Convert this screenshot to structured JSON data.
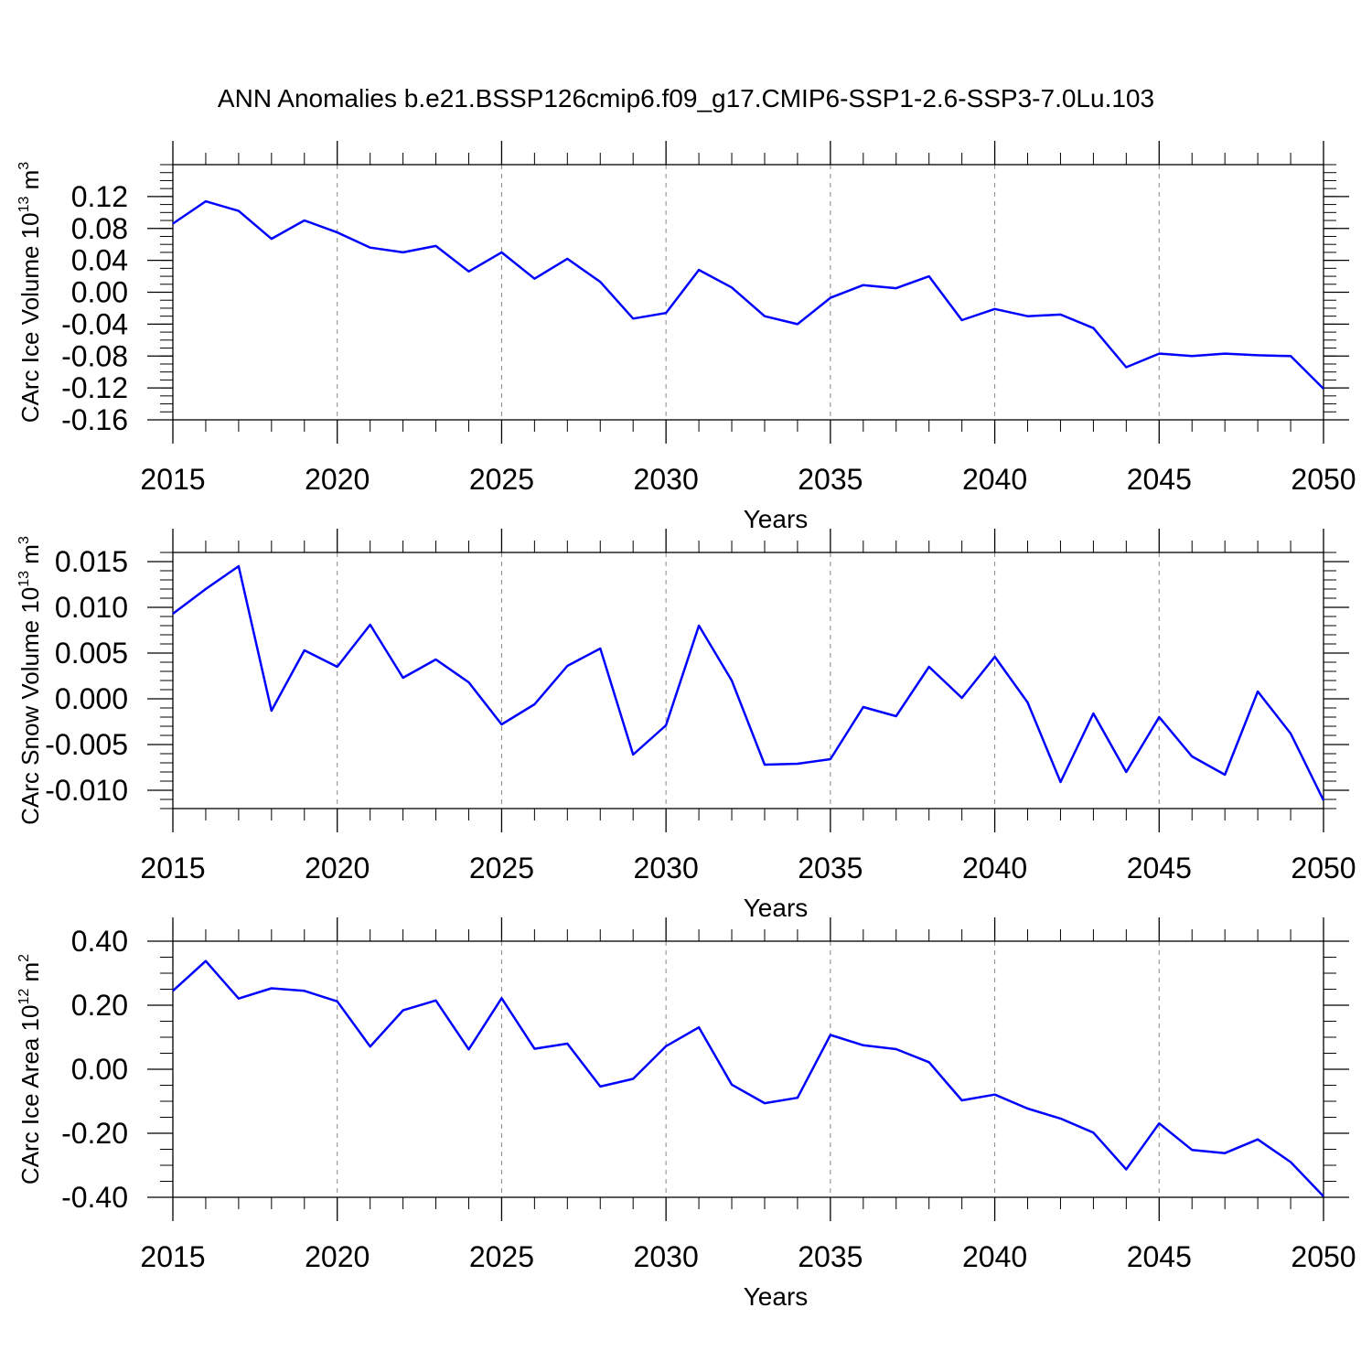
{
  "title": "ANN Anomalies b.e21.BSSP126cmip6.f09_g17.CMIP6-SSP1-2.6-SSP3-7.0Lu.103",
  "colors": {
    "line": "#0000ff",
    "axis": "#000000",
    "grid": "#888888"
  },
  "chart_data": [
    {
      "type": "line",
      "name": "ice-volume",
      "ylabel": "CArc Ice Volume 10",
      "ylabel_exp": "13",
      "ylabel_unit": " m",
      "ylabel_unit_exp": "3",
      "xlabel": "Years",
      "xlim": [
        2015,
        2050
      ],
      "ylim": [
        -0.16,
        0.16
      ],
      "yticks": [
        -0.16,
        -0.12,
        -0.08,
        -0.04,
        0.0,
        0.04,
        0.08,
        0.12
      ],
      "ytick_labels": [
        "-0.16",
        "-0.12",
        "-0.08",
        "-0.04",
        "0.00",
        "0.04",
        "0.08",
        "0.12"
      ],
      "yminor_step": 0.01,
      "x": [
        2015,
        2016,
        2017,
        2018,
        2019,
        2020,
        2021,
        2022,
        2023,
        2024,
        2025,
        2026,
        2027,
        2028,
        2029,
        2030,
        2031,
        2032,
        2033,
        2034,
        2035,
        2036,
        2037,
        2038,
        2039,
        2040,
        2041,
        2042,
        2043,
        2044,
        2045,
        2046,
        2047,
        2048,
        2049,
        2050
      ],
      "values": [
        0.086,
        0.114,
        0.102,
        0.067,
        0.09,
        0.075,
        0.056,
        0.05,
        0.058,
        0.026,
        0.05,
        0.017,
        0.042,
        0.013,
        -0.033,
        -0.026,
        0.028,
        0.006,
        -0.03,
        -0.04,
        -0.007,
        0.009,
        0.005,
        0.02,
        -0.035,
        -0.021,
        -0.03,
        -0.028,
        -0.045,
        -0.094,
        -0.077,
        -0.08,
        -0.077,
        -0.079,
        -0.08,
        -0.121
      ]
    },
    {
      "type": "line",
      "name": "snow-volume",
      "ylabel": "CArc Snow Volume 10",
      "ylabel_exp": "13",
      "ylabel_unit": " m",
      "ylabel_unit_exp": "3",
      "xlabel": "Years",
      "xlim": [
        2015,
        2050
      ],
      "ylim": [
        -0.012,
        0.016
      ],
      "yticks": [
        -0.01,
        -0.005,
        0.0,
        0.005,
        0.01,
        0.015
      ],
      "ytick_labels": [
        "-0.010",
        "-0.005",
        "0.000",
        "0.005",
        "0.010",
        "0.015"
      ],
      "yminor_step": 0.001,
      "x": [
        2015,
        2016,
        2017,
        2018,
        2019,
        2020,
        2021,
        2022,
        2023,
        2024,
        2025,
        2026,
        2027,
        2028,
        2029,
        2030,
        2031,
        2032,
        2033,
        2034,
        2035,
        2036,
        2037,
        2038,
        2039,
        2040,
        2041,
        2042,
        2043,
        2044,
        2045,
        2046,
        2047,
        2048,
        2049,
        2050
      ],
      "values": [
        0.0093,
        0.012,
        0.0145,
        -0.0013,
        0.0053,
        0.0035,
        0.0081,
        0.0023,
        0.0043,
        0.0018,
        -0.0028,
        -0.0006,
        0.0036,
        0.0055,
        -0.0061,
        -0.0029,
        0.008,
        0.002,
        -0.0072,
        -0.0071,
        -0.0066,
        -0.0009,
        -0.0019,
        0.0035,
        0.0001,
        0.0046,
        -0.0004,
        -0.0091,
        -0.0016,
        -0.008,
        -0.002,
        -0.0063,
        -0.0083,
        0.0008,
        -0.0038,
        -0.0111
      ]
    },
    {
      "type": "line",
      "name": "ice-area",
      "ylabel": "CArc Ice Area 10",
      "ylabel_exp": "12",
      "ylabel_unit": " m",
      "ylabel_unit_exp": "2",
      "xlabel": "Years",
      "xlim": [
        2015,
        2050
      ],
      "ylim": [
        -0.4,
        0.4
      ],
      "yticks": [
        -0.4,
        -0.2,
        0.0,
        0.2,
        0.4
      ],
      "ytick_labels": [
        "-0.40",
        "-0.20",
        "0.00",
        "0.20",
        "0.40"
      ],
      "yminor_step": 0.05,
      "x": [
        2015,
        2016,
        2017,
        2018,
        2019,
        2020,
        2021,
        2022,
        2023,
        2024,
        2025,
        2026,
        2027,
        2028,
        2029,
        2030,
        2031,
        2032,
        2033,
        2034,
        2035,
        2036,
        2037,
        2038,
        2039,
        2040,
        2041,
        2042,
        2043,
        2044,
        2045,
        2046,
        2047,
        2048,
        2049,
        2050
      ],
      "values": [
        0.245,
        0.338,
        0.221,
        0.253,
        0.245,
        0.212,
        0.071,
        0.184,
        0.215,
        0.062,
        0.222,
        0.064,
        0.08,
        -0.054,
        -0.03,
        0.072,
        0.131,
        -0.048,
        -0.106,
        -0.089,
        0.107,
        0.075,
        0.063,
        0.022,
        -0.097,
        -0.079,
        -0.123,
        -0.154,
        -0.198,
        -0.313,
        -0.169,
        -0.252,
        -0.262,
        -0.219,
        -0.29,
        -0.397
      ]
    }
  ]
}
